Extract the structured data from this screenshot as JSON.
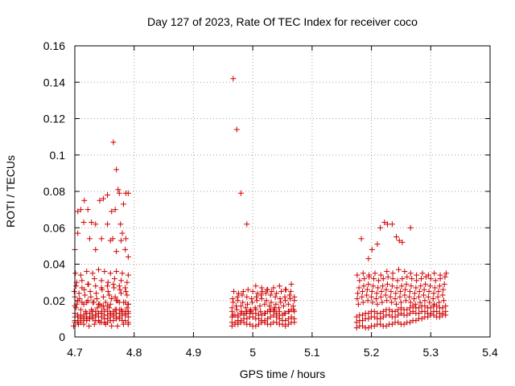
{
  "chart_data": {
    "type": "scatter",
    "title": "Day 127 of 2023, Rate Of TEC Index for receiver coco",
    "xlabel": "GPS time / hours",
    "ylabel": "ROTI / TECUs",
    "xlim": [
      4.7,
      5.4
    ],
    "ylim": [
      0,
      0.16
    ],
    "xticks": [
      "4.7",
      "4.8",
      "4.9",
      "5",
      "5.1",
      "5.2",
      "5.3",
      "5.4"
    ],
    "yticks": [
      "0",
      "0.02",
      "0.04",
      "0.06",
      "0.08",
      "0.1",
      "0.12",
      "0.14",
      "0.16"
    ],
    "grid": true,
    "legend": "none",
    "marker": "plus",
    "color": "#d00000",
    "series": [
      {
        "x": [
          4.7,
          4.705,
          4.71,
          4.715,
          4.72,
          4.725,
          4.73,
          4.735,
          4.74,
          4.745,
          4.75,
          4.755,
          4.76,
          4.765,
          4.77,
          4.775,
          4.78,
          4.785,
          4.79,
          4.7,
          4.705,
          4.71,
          4.715,
          4.72,
          4.725,
          4.73,
          4.735,
          4.74,
          4.745,
          4.75,
          4.755,
          4.76,
          4.765,
          4.77,
          4.775,
          4.78,
          4.785,
          4.79,
          4.7,
          4.705,
          4.71,
          4.715,
          4.72,
          4.725,
          4.73,
          4.735,
          4.74,
          4.745,
          4.75,
          4.755,
          4.76,
          4.765,
          4.77,
          4.775,
          4.78,
          4.785,
          4.79,
          4.7,
          4.705,
          4.71,
          4.715,
          4.72,
          4.725,
          4.73,
          4.735,
          4.74,
          4.745,
          4.75,
          4.755,
          4.76,
          4.765,
          4.77,
          4.775,
          4.78,
          4.785,
          4.79,
          4.702,
          4.71,
          4.718,
          4.728,
          4.738,
          4.748,
          4.758,
          4.768,
          4.778,
          4.788,
          4.703,
          4.712,
          4.722,
          4.732,
          4.742,
          4.752,
          4.762,
          4.772,
          4.782,
          4.79,
          4.698,
          4.706,
          4.715,
          4.724,
          4.733,
          4.742,
          4.752,
          4.762,
          4.772,
          4.782,
          4.79,
          4.7,
          4.708,
          4.717,
          4.727,
          4.737,
          4.748,
          4.758,
          4.768,
          4.778,
          4.788,
          4.699,
          4.707,
          4.716,
          4.726,
          4.736,
          4.746,
          4.756,
          4.766,
          4.776,
          4.786,
          4.703,
          4.712,
          4.723,
          4.733,
          4.745,
          4.756,
          4.767,
          4.778,
          4.788,
          4.701,
          4.71,
          4.72,
          4.73,
          4.74,
          4.75,
          4.76,
          4.77,
          4.78,
          4.79,
          4.702,
          4.712,
          4.722,
          4.735,
          4.745,
          4.755,
          4.765,
          4.775,
          4.785,
          4.7,
          4.715,
          4.73,
          4.745,
          4.76,
          4.775,
          4.79,
          4.705,
          4.72,
          4.74,
          4.755,
          4.77,
          4.785,
          4.7,
          4.705,
          4.71,
          4.716,
          4.722,
          4.728,
          4.735,
          4.742,
          4.748,
          4.755,
          4.76,
          4.764,
          4.768,
          4.773,
          4.777,
          4.782,
          4.786,
          4.79,
          4.765,
          4.77,
          4.775,
          4.78,
          4.785,
          4.79,
          4.705,
          4.715,
          4.725,
          4.735,
          4.745,
          4.755,
          4.762,
          4.77,
          4.778,
          4.786
        ],
        "y": [
          0.009,
          0.009,
          0.01,
          0.01,
          0.011,
          0.011,
          0.012,
          0.012,
          0.011,
          0.011,
          0.01,
          0.01,
          0.011,
          0.012,
          0.013,
          0.013,
          0.012,
          0.012,
          0.011,
          0.011,
          0.011,
          0.012,
          0.012,
          0.013,
          0.013,
          0.014,
          0.014,
          0.013,
          0.013,
          0.012,
          0.012,
          0.013,
          0.014,
          0.015,
          0.015,
          0.014,
          0.014,
          0.013,
          0.008,
          0.008,
          0.008,
          0.009,
          0.009,
          0.01,
          0.01,
          0.009,
          0.009,
          0.008,
          0.008,
          0.008,
          0.009,
          0.009,
          0.01,
          0.01,
          0.009,
          0.009,
          0.008,
          0.013,
          0.012,
          0.011,
          0.011,
          0.01,
          0.01,
          0.011,
          0.012,
          0.013,
          0.014,
          0.015,
          0.014,
          0.013,
          0.012,
          0.011,
          0.011,
          0.012,
          0.013,
          0.014,
          0.016,
          0.015,
          0.014,
          0.015,
          0.016,
          0.017,
          0.016,
          0.015,
          0.015,
          0.016,
          0.018,
          0.019,
          0.02,
          0.019,
          0.018,
          0.019,
          0.021,
          0.02,
          0.019,
          0.018,
          0.006,
          0.007,
          0.007,
          0.006,
          0.007,
          0.008,
          0.007,
          0.006,
          0.006,
          0.007,
          0.007,
          0.022,
          0.021,
          0.023,
          0.022,
          0.021,
          0.022,
          0.023,
          0.022,
          0.024,
          0.023,
          0.025,
          0.024,
          0.026,
          0.025,
          0.024,
          0.026,
          0.025,
          0.027,
          0.026,
          0.025,
          0.03,
          0.031,
          0.029,
          0.032,
          0.031,
          0.03,
          0.032,
          0.031,
          0.03,
          0.035,
          0.034,
          0.036,
          0.035,
          0.037,
          0.036,
          0.035,
          0.036,
          0.035,
          0.034,
          0.028,
          0.027,
          0.029,
          0.028,
          0.027,
          0.028,
          0.029,
          0.028,
          0.027,
          0.017,
          0.018,
          0.019,
          0.017,
          0.018,
          0.019,
          0.018,
          0.02,
          0.019,
          0.018,
          0.017,
          0.02,
          0.019,
          0.048,
          0.069,
          0.07,
          0.075,
          0.07,
          0.063,
          0.062,
          0.075,
          0.076,
          0.078,
          0.053,
          0.054,
          0.07,
          0.081,
          0.062,
          0.073,
          0.079,
          0.079,
          0.107,
          0.092,
          0.079,
          0.057,
          0.048,
          0.044,
          0.057,
          0.063,
          0.054,
          0.048,
          0.054,
          0.062,
          0.069,
          0.047,
          0.053,
          0.054
        ]
      },
      {
        "x": [
          4.965,
          4.97,
          4.975,
          4.98,
          4.985,
          4.99,
          4.995,
          5.0,
          5.005,
          5.01,
          5.015,
          5.02,
          5.025,
          5.03,
          5.035,
          5.04,
          5.045,
          5.05,
          5.055,
          5.06,
          5.065,
          5.07,
          4.965,
          4.97,
          4.975,
          4.98,
          4.985,
          4.99,
          4.995,
          5.0,
          5.005,
          5.01,
          5.015,
          5.02,
          5.025,
          5.03,
          5.035,
          5.04,
          5.045,
          5.05,
          5.055,
          5.06,
          5.065,
          5.07,
          4.965,
          4.97,
          4.975,
          4.98,
          4.985,
          4.99,
          4.995,
          5.0,
          5.005,
          5.01,
          5.015,
          5.02,
          5.025,
          5.03,
          5.035,
          5.04,
          5.045,
          5.05,
          5.055,
          5.06,
          5.065,
          5.07,
          4.965,
          4.972,
          4.98,
          4.988,
          4.996,
          5.004,
          5.012,
          5.02,
          5.028,
          5.036,
          5.044,
          5.052,
          5.06,
          5.068,
          4.967,
          4.975,
          4.983,
          4.991,
          4.999,
          5.007,
          5.015,
          5.023,
          5.031,
          5.039,
          5.047,
          5.055,
          5.063,
          5.07,
          4.966,
          4.974,
          4.982,
          4.99,
          4.998,
          5.006,
          5.014,
          5.022,
          5.03,
          5.038,
          5.046,
          5.054,
          5.062,
          5.07,
          4.968,
          4.976,
          4.984,
          4.992,
          5.0,
          5.008,
          5.016,
          5.024,
          5.032,
          5.04,
          5.048,
          5.056,
          5.064,
          4.965,
          4.973,
          4.981,
          4.989,
          4.997,
          5.005,
          5.013,
          5.021,
          5.029,
          5.037,
          5.045,
          5.053,
          5.061,
          5.069,
          4.967,
          4.975,
          4.985,
          4.995,
          5.005,
          5.015,
          5.025,
          5.035,
          5.045,
          5.055,
          5.065,
          4.967,
          4.973,
          4.98,
          4.99
        ],
        "y": [
          0.008,
          0.008,
          0.009,
          0.009,
          0.01,
          0.01,
          0.011,
          0.011,
          0.01,
          0.01,
          0.009,
          0.009,
          0.01,
          0.011,
          0.012,
          0.011,
          0.01,
          0.009,
          0.009,
          0.01,
          0.011,
          0.01,
          0.011,
          0.012,
          0.012,
          0.013,
          0.013,
          0.014,
          0.014,
          0.013,
          0.013,
          0.012,
          0.012,
          0.013,
          0.014,
          0.015,
          0.014,
          0.013,
          0.012,
          0.012,
          0.013,
          0.014,
          0.015,
          0.014,
          0.006,
          0.007,
          0.007,
          0.008,
          0.008,
          0.007,
          0.007,
          0.006,
          0.006,
          0.007,
          0.008,
          0.008,
          0.007,
          0.007,
          0.008,
          0.008,
          0.007,
          0.007,
          0.006,
          0.007,
          0.008,
          0.008,
          0.016,
          0.017,
          0.017,
          0.016,
          0.015,
          0.016,
          0.017,
          0.018,
          0.017,
          0.016,
          0.016,
          0.017,
          0.018,
          0.017,
          0.019,
          0.02,
          0.019,
          0.018,
          0.019,
          0.02,
          0.021,
          0.02,
          0.019,
          0.018,
          0.019,
          0.02,
          0.021,
          0.02,
          0.021,
          0.022,
          0.023,
          0.022,
          0.021,
          0.022,
          0.023,
          0.024,
          0.023,
          0.022,
          0.021,
          0.022,
          0.023,
          0.022,
          0.025,
          0.024,
          0.025,
          0.026,
          0.025,
          0.024,
          0.025,
          0.026,
          0.025,
          0.024,
          0.025,
          0.026,
          0.025,
          0.014,
          0.015,
          0.014,
          0.013,
          0.014,
          0.015,
          0.014,
          0.013,
          0.014,
          0.015,
          0.014,
          0.013,
          0.014,
          0.015,
          0.012,
          0.011,
          0.012,
          0.013,
          0.028,
          0.027,
          0.026,
          0.027,
          0.028,
          0.026,
          0.029,
          0.142,
          0.114,
          0.079,
          0.062
        ]
      },
      {
        "x": [
          5.175,
          5.18,
          5.185,
          5.19,
          5.195,
          5.2,
          5.205,
          5.21,
          5.215,
          5.22,
          5.225,
          5.23,
          5.235,
          5.24,
          5.245,
          5.25,
          5.255,
          5.26,
          5.265,
          5.27,
          5.275,
          5.28,
          5.285,
          5.29,
          5.295,
          5.3,
          5.305,
          5.31,
          5.315,
          5.32,
          5.325,
          5.175,
          5.18,
          5.185,
          5.19,
          5.195,
          5.2,
          5.205,
          5.21,
          5.215,
          5.22,
          5.225,
          5.23,
          5.235,
          5.24,
          5.245,
          5.25,
          5.255,
          5.26,
          5.265,
          5.27,
          5.275,
          5.28,
          5.285,
          5.29,
          5.295,
          5.3,
          5.305,
          5.31,
          5.315,
          5.32,
          5.325,
          5.175,
          5.18,
          5.185,
          5.19,
          5.195,
          5.2,
          5.205,
          5.21,
          5.215,
          5.22,
          5.225,
          5.23,
          5.235,
          5.24,
          5.245,
          5.25,
          5.255,
          5.26,
          5.265,
          5.27,
          5.275,
          5.28,
          5.285,
          5.29,
          5.295,
          5.3,
          5.305,
          5.31,
          5.315,
          5.32,
          5.325,
          5.178,
          5.186,
          5.194,
          5.202,
          5.21,
          5.218,
          5.226,
          5.234,
          5.242,
          5.25,
          5.258,
          5.266,
          5.274,
          5.282,
          5.29,
          5.298,
          5.306,
          5.314,
          5.322,
          5.176,
          5.184,
          5.192,
          5.2,
          5.208,
          5.216,
          5.224,
          5.232,
          5.24,
          5.248,
          5.256,
          5.264,
          5.272,
          5.28,
          5.288,
          5.296,
          5.304,
          5.312,
          5.32,
          5.177,
          5.185,
          5.193,
          5.201,
          5.209,
          5.217,
          5.225,
          5.233,
          5.241,
          5.249,
          5.257,
          5.265,
          5.273,
          5.281,
          5.289,
          5.297,
          5.305,
          5.313,
          5.321,
          5.179,
          5.187,
          5.195,
          5.203,
          5.211,
          5.219,
          5.227,
          5.235,
          5.243,
          5.251,
          5.259,
          5.267,
          5.275,
          5.283,
          5.291,
          5.299,
          5.307,
          5.315,
          5.323,
          5.18,
          5.188,
          5.196,
          5.204,
          5.212,
          5.22,
          5.228,
          5.236,
          5.244,
          5.252,
          5.26,
          5.268,
          5.276,
          5.284,
          5.292,
          5.3,
          5.308,
          5.316,
          5.324,
          5.176,
          5.186,
          5.196,
          5.206,
          5.216,
          5.226,
          5.236,
          5.246,
          5.256,
          5.266,
          5.276,
          5.286,
          5.296,
          5.306,
          5.316,
          5.326,
          5.183,
          5.195,
          5.201,
          5.21,
          5.215,
          5.222,
          5.227,
          5.235,
          5.242,
          5.247,
          5.252,
          5.266
        ],
        "y": [
          0.008,
          0.009,
          0.009,
          0.01,
          0.01,
          0.011,
          0.011,
          0.01,
          0.01,
          0.011,
          0.012,
          0.012,
          0.011,
          0.011,
          0.012,
          0.013,
          0.012,
          0.012,
          0.013,
          0.014,
          0.013,
          0.013,
          0.014,
          0.014,
          0.013,
          0.013,
          0.014,
          0.014,
          0.013,
          0.013,
          0.014,
          0.011,
          0.012,
          0.012,
          0.013,
          0.013,
          0.014,
          0.014,
          0.013,
          0.013,
          0.014,
          0.015,
          0.015,
          0.014,
          0.014,
          0.015,
          0.016,
          0.015,
          0.015,
          0.016,
          0.017,
          0.016,
          0.016,
          0.017,
          0.017,
          0.016,
          0.016,
          0.017,
          0.017,
          0.016,
          0.016,
          0.017,
          0.005,
          0.006,
          0.006,
          0.005,
          0.005,
          0.006,
          0.006,
          0.007,
          0.007,
          0.006,
          0.006,
          0.007,
          0.007,
          0.008,
          0.008,
          0.007,
          0.007,
          0.008,
          0.008,
          0.009,
          0.009,
          0.01,
          0.01,
          0.011,
          0.011,
          0.012,
          0.012,
          0.011,
          0.011,
          0.012,
          0.012,
          0.018,
          0.019,
          0.02,
          0.019,
          0.018,
          0.019,
          0.02,
          0.019,
          0.018,
          0.019,
          0.02,
          0.019,
          0.018,
          0.019,
          0.02,
          0.019,
          0.018,
          0.019,
          0.02,
          0.021,
          0.022,
          0.023,
          0.022,
          0.021,
          0.022,
          0.023,
          0.022,
          0.021,
          0.022,
          0.023,
          0.022,
          0.021,
          0.022,
          0.023,
          0.022,
          0.021,
          0.022,
          0.023,
          0.024,
          0.025,
          0.026,
          0.025,
          0.024,
          0.025,
          0.026,
          0.025,
          0.024,
          0.025,
          0.026,
          0.025,
          0.024,
          0.025,
          0.026,
          0.025,
          0.024,
          0.025,
          0.026,
          0.027,
          0.028,
          0.029,
          0.028,
          0.027,
          0.028,
          0.029,
          0.028,
          0.027,
          0.028,
          0.029,
          0.028,
          0.027,
          0.028,
          0.029,
          0.028,
          0.027,
          0.028,
          0.029,
          0.031,
          0.032,
          0.033,
          0.032,
          0.031,
          0.032,
          0.033,
          0.032,
          0.031,
          0.032,
          0.033,
          0.032,
          0.031,
          0.032,
          0.033,
          0.032,
          0.031,
          0.032,
          0.033,
          0.034,
          0.035,
          0.034,
          0.035,
          0.034,
          0.036,
          0.035,
          0.037,
          0.036,
          0.035,
          0.034,
          0.035,
          0.034,
          0.035,
          0.034,
          0.035,
          0.054,
          0.043,
          0.048,
          0.051,
          0.06,
          0.063,
          0.062,
          0.062,
          0.055,
          0.053,
          0.052,
          0.06
        ]
      }
    ]
  }
}
